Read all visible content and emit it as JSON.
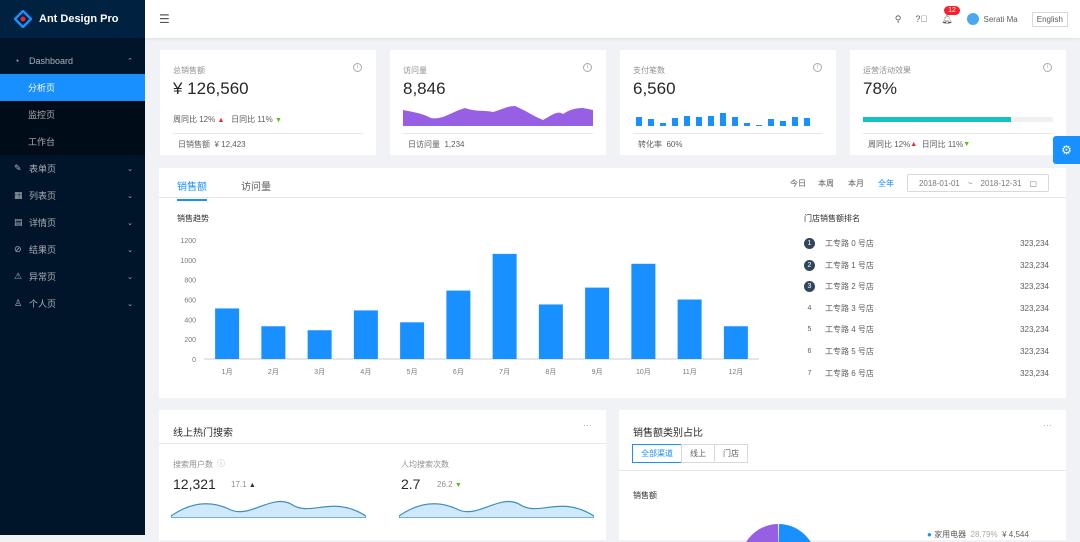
{
  "app": {
    "title": "Ant Design Pro"
  },
  "sidebar": {
    "items": [
      {
        "label": "Dashboard",
        "icon": "dashboard-icon",
        "expanded": true,
        "children": [
          {
            "label": "分析页",
            "active": true
          },
          {
            "label": "监控页"
          },
          {
            "label": "工作台"
          }
        ]
      },
      {
        "label": "表单页",
        "icon": "form-icon"
      },
      {
        "label": "列表页",
        "icon": "table-icon"
      },
      {
        "label": "详情页",
        "icon": "profile-icon"
      },
      {
        "label": "结果页",
        "icon": "check-circle-icon"
      },
      {
        "label": "异常页",
        "icon": "warning-icon"
      },
      {
        "label": "个人页",
        "icon": "user-icon"
      }
    ]
  },
  "header": {
    "notifications": "12",
    "user": "Serati Ma",
    "language": "English"
  },
  "stats": [
    {
      "title": "总销售额",
      "value": "¥ 126,560",
      "wow_label": "周同比",
      "wow": "12%",
      "dod_label": "日同比",
      "dod": "11%",
      "footer_label": "日销售额",
      "footer_value": "¥ 12,423"
    },
    {
      "title": "访问量",
      "value": "8,846",
      "footer_label": "日访问量",
      "footer_value": "1,234"
    },
    {
      "title": "支付笔数",
      "value": "6,560",
      "footer_label": "转化率",
      "footer_value": "60%"
    },
    {
      "title": "运营活动效果",
      "value": "78%",
      "progress": 78,
      "wow_label": "周同比",
      "wow": "12%",
      "dod_label": "日同比",
      "dod": "11%"
    }
  ],
  "colors": {
    "primary": "#1890ff",
    "visits": "#975fe4",
    "progress": "#13c2c2",
    "up": "#f5222d",
    "down": "#52c41a"
  },
  "sales": {
    "tabs": [
      "销售额",
      "访问量"
    ],
    "ranges": [
      "今日",
      "本周",
      "本月",
      "全年"
    ],
    "active_range": "全年",
    "date_start": "2018-01-01",
    "date_sep": "~",
    "date_end": "2018-12-31",
    "ranking_title": "门店销售额排名",
    "ranking": [
      {
        "rank": "1",
        "name": "工专路 0 号店",
        "amount": "323,234"
      },
      {
        "rank": "2",
        "name": "工专路 1 号店",
        "amount": "323,234"
      },
      {
        "rank": "3",
        "name": "工专路 2 号店",
        "amount": "323,234"
      },
      {
        "rank": "4",
        "name": "工专路 3 号店",
        "amount": "323,234"
      },
      {
        "rank": "5",
        "name": "工专路 4 号店",
        "amount": "323,234"
      },
      {
        "rank": "6",
        "name": "工专路 5 号店",
        "amount": "323,234"
      },
      {
        "rank": "7",
        "name": "工专路 6 号店",
        "amount": "323,234"
      }
    ]
  },
  "chart_data": {
    "type": "bar",
    "title": "销售趋势",
    "categories": [
      "1月",
      "2月",
      "3月",
      "4月",
      "5月",
      "6月",
      "7月",
      "8月",
      "9月",
      "10月",
      "11月",
      "12月"
    ],
    "values": [
      510,
      330,
      290,
      490,
      370,
      690,
      1060,
      550,
      720,
      960,
      600,
      330
    ],
    "ylim": [
      0,
      1200
    ],
    "yticks": [
      0,
      200,
      400,
      600,
      800,
      1000,
      1200
    ],
    "color": "#1890ff"
  },
  "search": {
    "title": "线上热门搜索",
    "users_label": "搜索用户数",
    "users": "12,321",
    "users_change": "17.1",
    "per_label": "人均搜索次数",
    "per": "2.7",
    "per_change": "26.2"
  },
  "category": {
    "title": "销售额类别占比",
    "segments": [
      "全部渠道",
      "线上",
      "门店"
    ],
    "subtitle": "销售额",
    "legend": [
      {
        "name": "家用电器",
        "percent": "28.79%",
        "value": "¥ 4,544"
      }
    ]
  }
}
